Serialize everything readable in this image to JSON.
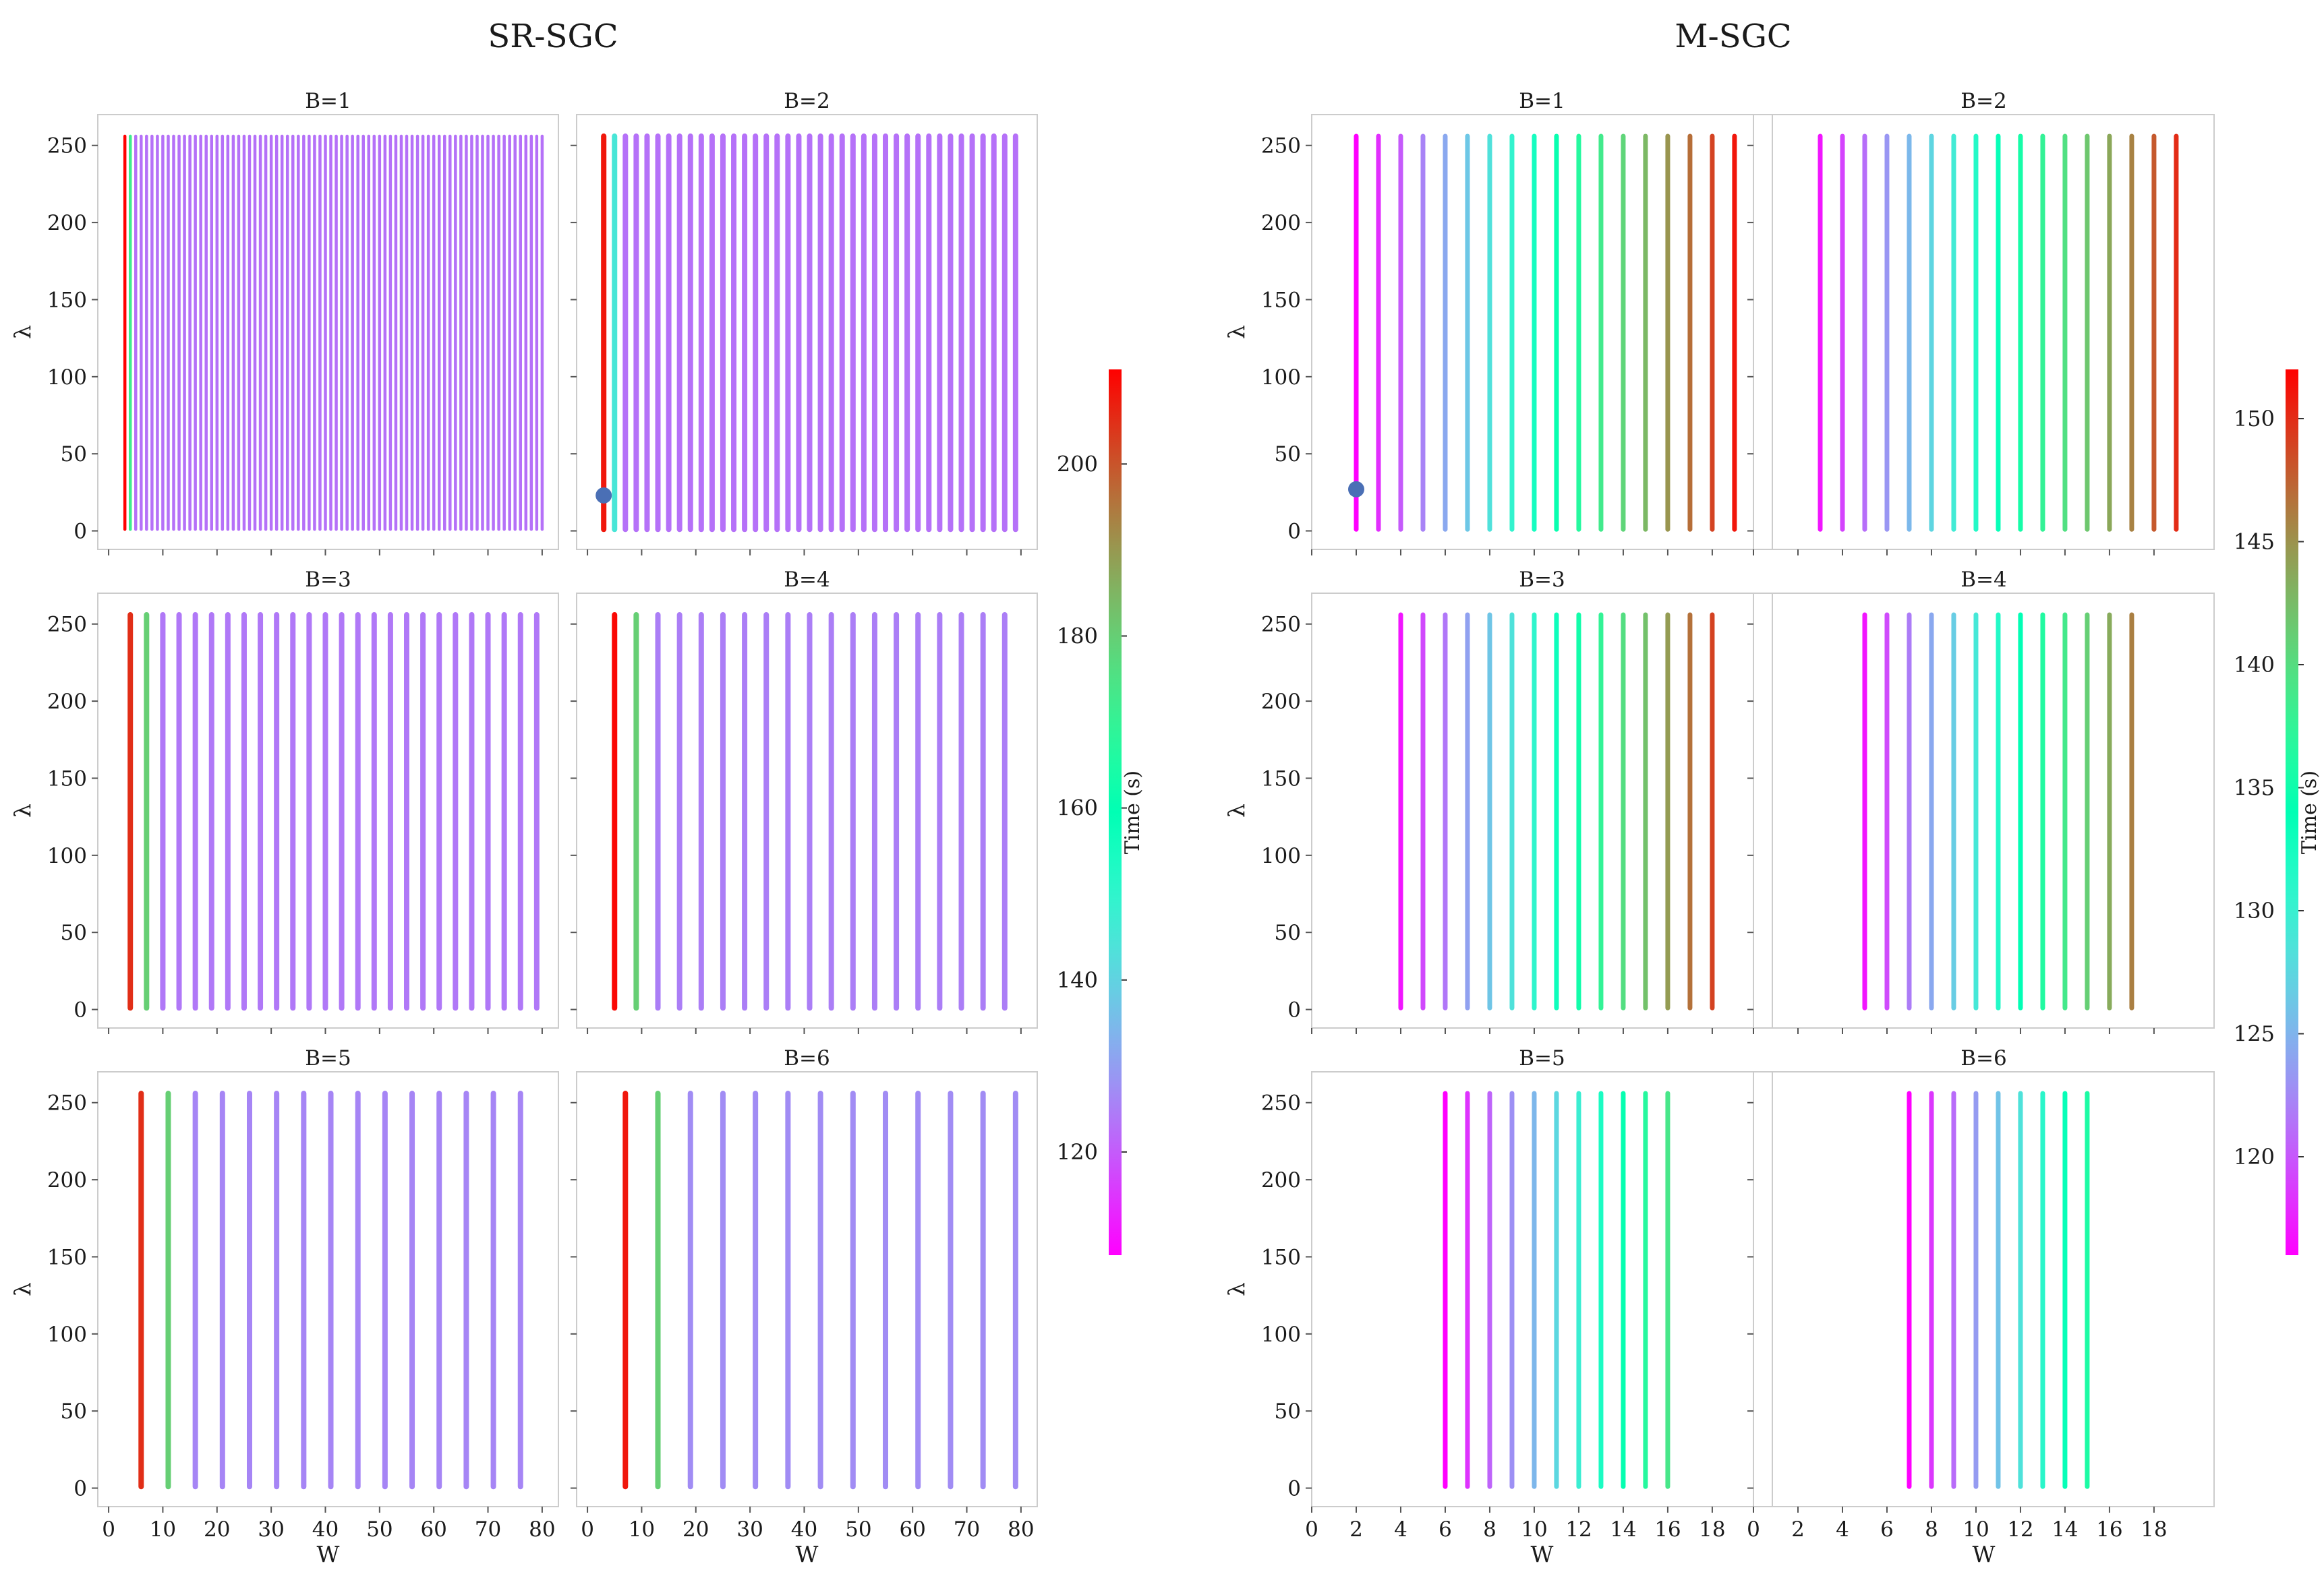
{
  "chart_data": [
    {
      "type": "scatter",
      "title": "SR-SGC",
      "xlabel": "W",
      "ylabel": "λ",
      "xlim": [
        -2,
        83
      ],
      "ylim": [
        -12,
        270
      ],
      "xticks": [
        0,
        10,
        20,
        30,
        40,
        50,
        60,
        70,
        80
      ],
      "yticks": [
        0,
        50,
        100,
        150,
        200,
        250
      ],
      "lambda_range": [
        1,
        256
      ],
      "colormap": "rainbow",
      "colorbar": {
        "label": "Time (s)",
        "min": 108,
        "max": 211,
        "ticks": [
          120,
          140,
          160,
          180,
          200
        ]
      },
      "highlight": {
        "subplot": "B=2",
        "W": 3,
        "lambda": 23
      },
      "subplots": [
        {
          "title": "B=1",
          "W_start": 3,
          "W_end": 80,
          "W_step": 1,
          "first_column_time": 211,
          "second_column_time": 172,
          "base_time": 123
        },
        {
          "title": "B=2",
          "W_start": 3,
          "W_end": 79,
          "W_step": 2,
          "first_column_time": 208,
          "second_column_time": 145,
          "base_time": 123
        },
        {
          "title": "B=3",
          "W_start": 4,
          "W_end": 79,
          "W_step": 3,
          "first_column_time": 205,
          "second_column_time": 180,
          "base_time": 124
        },
        {
          "title": "B=4",
          "W_start": 5,
          "W_end": 77,
          "W_step": 4,
          "first_column_time": 210,
          "second_column_time": 180,
          "base_time": 125
        },
        {
          "title": "B=5",
          "W_start": 6,
          "W_end": 76,
          "W_step": 5,
          "first_column_time": 205,
          "second_column_time": 180,
          "base_time": 126
        },
        {
          "title": "B=6",
          "W_start": 7,
          "W_end": 79,
          "W_step": 6,
          "first_column_time": 208,
          "second_column_time": 180,
          "base_time": 127
        }
      ]
    },
    {
      "type": "scatter",
      "title": "M-SGC",
      "xlabel": "W",
      "ylabel": "λ",
      "xlim": [
        0,
        20.7
      ],
      "ylim": [
        -12,
        270
      ],
      "xticks": [
        0,
        2,
        4,
        6,
        8,
        10,
        12,
        14,
        16,
        18
      ],
      "yticks": [
        0,
        50,
        100,
        150,
        200,
        250
      ],
      "lambda_range": [
        1,
        256
      ],
      "colormap": "rainbow",
      "colorbar": {
        "label": "Time (s)",
        "min": 116,
        "max": 152,
        "ticks": [
          120,
          125,
          130,
          135,
          140,
          145,
          150
        ]
      },
      "highlight": {
        "subplot": "B=1",
        "W": 2,
        "lambda": 27
      },
      "subplots": [
        {
          "title": "B=1",
          "W_start": 2,
          "W_end": 19,
          "time_start": 116,
          "time_end": 151
        },
        {
          "title": "B=2",
          "W_start": 3,
          "W_end": 19,
          "time_start": 117,
          "time_end": 150
        },
        {
          "title": "B=3",
          "W_start": 4,
          "W_end": 18,
          "time_start": 117,
          "time_end": 149
        },
        {
          "title": "B=4",
          "W_start": 5,
          "W_end": 17,
          "time_start": 117,
          "time_end": 146
        },
        {
          "title": "B=5",
          "W_start": 6,
          "W_end": 16,
          "time_start": 116,
          "time_end": 139
        },
        {
          "title": "B=6",
          "W_start": 7,
          "W_end": 15,
          "time_start": 116,
          "time_end": 136
        }
      ]
    }
  ]
}
